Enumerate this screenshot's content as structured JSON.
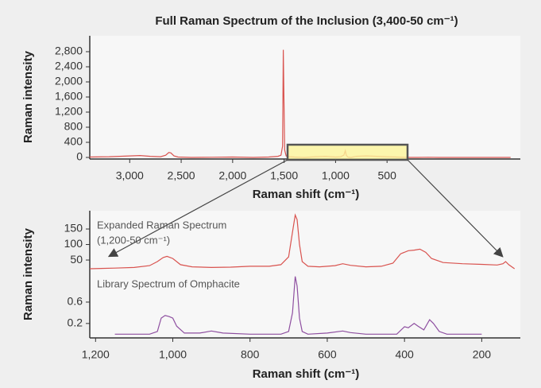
{
  "chart_data": [
    {
      "type": "line",
      "title": "Full Raman Spectrum of the Inclusion (3,400-50 cm⁻¹)",
      "xlabel": "Raman shift (cm⁻¹)",
      "ylabel": "Raman intensity",
      "xlim": [
        3388,
        -795
      ],
      "ylim": [
        -42,
        3221
      ],
      "xticks": [
        {
          "value": 3000,
          "label": "3,000"
        },
        {
          "value": 2500,
          "label": "2,500"
        },
        {
          "value": 2000,
          "label": "2,000"
        },
        {
          "value": 1500,
          "label": "1,500"
        },
        {
          "value": 1000,
          "label": "1,000"
        },
        500
      ],
      "yticks": [
        0,
        400,
        800,
        {
          "value": 1200,
          "label": "1,200"
        },
        {
          "value": 1600,
          "label": "1,600"
        },
        {
          "value": 2000,
          "label": "2,000"
        },
        {
          "value": 2400,
          "label": "2,400"
        },
        {
          "value": 2800,
          "label": "2,800"
        }
      ],
      "series": [
        {
          "color": "#d9534f",
          "x": [
            3390,
            3200,
            3000,
            2900,
            2800,
            2700,
            2650,
            2620,
            2600,
            2570,
            2530,
            2400,
            2200,
            2000,
            1800,
            1650,
            1560,
            1530,
            1515,
            1508,
            1502,
            1495,
            1480,
            1450,
            1400,
            1300,
            1200,
            1100,
            1000,
            950,
            920,
            905,
            895,
            880,
            850,
            800,
            700,
            600,
            500,
            400,
            300,
            200,
            100,
            0,
            -100,
            -300,
            -500,
            -700
          ],
          "values": [
            10,
            20,
            40,
            50,
            30,
            20,
            60,
            130,
            120,
            40,
            10,
            0,
            5,
            10,
            0,
            10,
            30,
            60,
            300,
            2850,
            1600,
            200,
            40,
            20,
            10,
            0,
            20,
            30,
            10,
            20,
            60,
            180,
            50,
            10,
            0,
            30,
            40,
            30,
            20,
            10,
            0,
            0,
            5,
            0,
            0,
            0,
            0,
            0
          ]
        }
      ]
    },
    {
      "type": "line",
      "ylabel": "Raman intensity",
      "annotations": [
        "Expanded Raman Spectrum",
        "(1,200-50 cm⁻¹)"
      ],
      "xlim": [
        1215,
        100
      ],
      "ylim": [
        4,
        209
      ],
      "yticks": [
        50,
        100,
        150
      ],
      "series": [
        {
          "color": "#d9534f",
          "x": [
            1215,
            1150,
            1100,
            1060,
            1040,
            1025,
            1015,
            1000,
            980,
            950,
            900,
            850,
            800,
            750,
            720,
            700,
            690,
            683,
            678,
            672,
            665,
            650,
            620,
            580,
            560,
            540,
            500,
            460,
            430,
            410,
            390,
            375,
            360,
            345,
            330,
            300,
            250,
            200,
            160,
            145,
            138,
            130,
            115
          ],
          "values": [
            22,
            24,
            26,
            32,
            45,
            58,
            62,
            55,
            35,
            28,
            26,
            27,
            30,
            30,
            35,
            60,
            140,
            195,
            180,
            100,
            45,
            30,
            28,
            32,
            38,
            33,
            28,
            30,
            40,
            70,
            80,
            82,
            85,
            75,
            55,
            42,
            38,
            36,
            34,
            38,
            45,
            35,
            22
          ]
        }
      ]
    },
    {
      "type": "line",
      "xlabel": "Raman shift (cm⁻¹)",
      "annotations": [
        "Library Spectrum of Omphacite"
      ],
      "xlim": [
        1215,
        100
      ],
      "ylim": [
        -0.07,
        1.12
      ],
      "yticks": [
        0.2,
        0.6
      ],
      "xticks": [
        {
          "value": 1200,
          "label": "1,200"
        },
        {
          "value": 1000,
          "label": "1,000"
        },
        800,
        600,
        400,
        200
      ],
      "series": [
        {
          "color": "#8e4fa0",
          "x": [
            1150,
            1060,
            1040,
            1030,
            1020,
            1010,
            1000,
            990,
            970,
            930,
            900,
            870,
            800,
            720,
            700,
            690,
            683,
            678,
            672,
            665,
            650,
            600,
            560,
            540,
            500,
            420,
            400,
            390,
            375,
            365,
            350,
            335,
            325,
            310,
            290,
            250,
            200
          ],
          "values": [
            0,
            0,
            0.05,
            0.3,
            0.35,
            0.33,
            0.3,
            0.15,
            0.02,
            0.02,
            0.06,
            0.02,
            0,
            0,
            0.05,
            0.4,
            1.08,
            0.9,
            0.3,
            0.05,
            0,
            0.02,
            0.06,
            0.03,
            0,
            0,
            0.14,
            0.12,
            0.2,
            0.15,
            0.08,
            0.27,
            0.2,
            0.05,
            0,
            0,
            0
          ]
        }
      ]
    }
  ]
}
